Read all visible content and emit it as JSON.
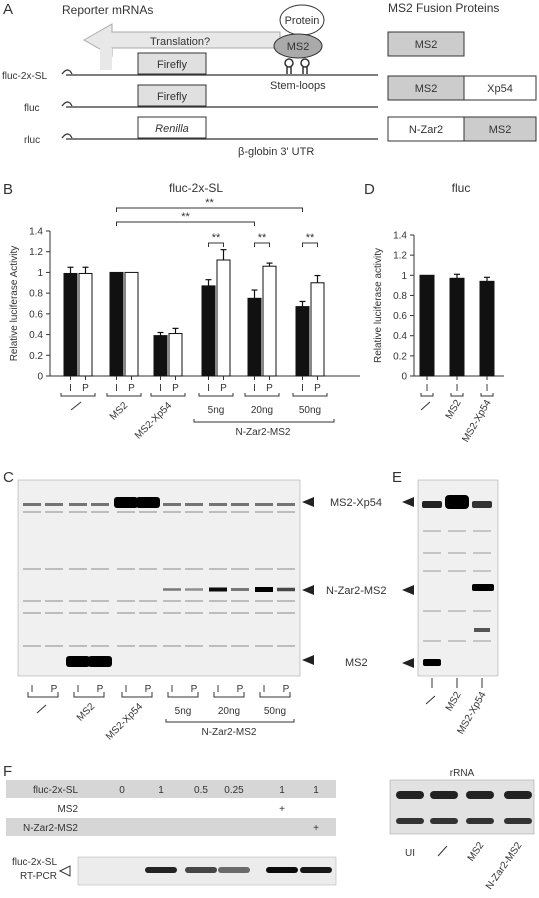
{
  "panels": {
    "A": "A",
    "B": "B",
    "C": "C",
    "D": "D",
    "E": "E",
    "F": "F"
  },
  "panelA": {
    "title_left": "Reporter mRNAs",
    "title_right": "MS2 Fusion Proteins",
    "translation": "Translation?",
    "protein": "Protein",
    "ms2": "MS2",
    "stem_loops": "Stem-loops",
    "utr": "β-globin 3' UTR",
    "reporters": [
      {
        "name": "fluc-2x-SL",
        "box": "Firefly",
        "italic": false
      },
      {
        "name": "fluc",
        "box": "Firefly",
        "italic": false
      },
      {
        "name": "rluc",
        "box": "Renilla",
        "italic": true
      }
    ],
    "fusions": [
      {
        "left": "MS2",
        "right": ""
      },
      {
        "left": "MS2",
        "right": "Xp54"
      },
      {
        "left": "N-Zar2",
        "right": "MS2"
      }
    ]
  },
  "chart_data": [
    {
      "type": "bar",
      "title": "fluc-2x-SL",
      "ylabel": "Relative luciferase Activity",
      "ylim": [
        0,
        1.4
      ],
      "yticks": [
        "0",
        "0.2",
        "0.4",
        "0.6",
        "0.8",
        "1",
        "1.2",
        "1.4"
      ],
      "categories": [
        "—",
        "MS2",
        "MS2-Xp54",
        "5ng",
        "20ng",
        "50ng"
      ],
      "group_label": "N-Zar2-MS2",
      "series": [
        {
          "name": "I",
          "values": [
            0.99,
            1.0,
            0.39,
            0.87,
            0.75,
            0.67
          ],
          "errors": [
            0.06,
            0,
            0.03,
            0.06,
            0.08,
            0.05
          ]
        },
        {
          "name": "P",
          "values": [
            0.99,
            1.0,
            0.41,
            1.12,
            1.06,
            0.9
          ],
          "errors": [
            0.06,
            0,
            0.05,
            0.1,
            0.03,
            0.07
          ]
        }
      ],
      "significance": "**"
    },
    {
      "type": "bar",
      "title": "fluc",
      "ylabel": "Relative luciferase activity",
      "ylim": [
        0,
        1.4
      ],
      "yticks": [
        "0",
        "0.2",
        "0.4",
        "0.6",
        "0.8",
        "1",
        "1.2",
        "1.4"
      ],
      "categories": [
        "—",
        "MS2",
        "MS2-Xp54"
      ],
      "series": [
        {
          "values": [
            1.0,
            0.97,
            0.94
          ],
          "errors": [
            0,
            0.04,
            0.04
          ]
        }
      ]
    }
  ],
  "xlabels": {
    "I": "I",
    "P": "P"
  },
  "panelC": {
    "labels": [
      "MS2-Xp54",
      "N-Zar2-MS2",
      "MS2"
    ],
    "groups": [
      "—",
      "MS2",
      "MS2-Xp54",
      "5ng",
      "20ng",
      "50ng"
    ],
    "group_label": "N-Zar2-MS2"
  },
  "panelE": {
    "lanes": [
      "—",
      "MS2",
      "MS2-Xp54"
    ]
  },
  "panelF": {
    "rows": [
      {
        "label": "fluc-2x-SL",
        "values": [
          "0",
          "1",
          "0.5",
          "0.25",
          "1",
          "1"
        ]
      },
      {
        "label": "MS2",
        "values": [
          "",
          "",
          "",
          "",
          "+",
          ""
        ]
      },
      {
        "label": "N-Zar2-MS2",
        "values": [
          "",
          "",
          "",
          "",
          "",
          "+"
        ]
      }
    ],
    "rtpcr_line1": "fluc-2x-SL",
    "rtpcr_line2": "RT-PCR",
    "rrna": "rRNA",
    "rrna_lanes": [
      "UI",
      "—",
      "MS2",
      "N-Zar2-MS2"
    ]
  }
}
